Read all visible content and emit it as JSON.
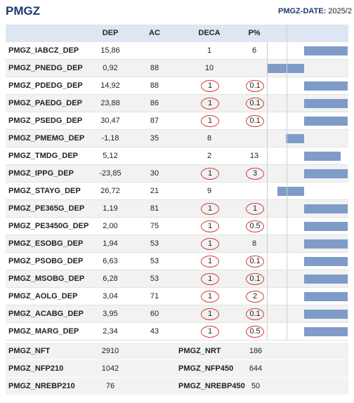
{
  "header": {
    "title": "PMGZ",
    "date_label": "PMGZ-DATE:",
    "date_value": "2025/2"
  },
  "table": {
    "columns": [
      "DEP",
      "AC",
      "DECA",
      "P%"
    ],
    "bar_lim": [
      -1,
      1
    ],
    "rows": [
      {
        "name": "PMGZ_IABCZ_DEP",
        "dep": "15,86",
        "ac": null,
        "deca": 1,
        "deca_flag": false,
        "p": 6,
        "p_flag": false,
        "bar": 1.2
      },
      {
        "name": "PMGZ_PNEDG_DEP",
        "dep": "0,92",
        "ac": 88,
        "deca": 10,
        "deca_flag": false,
        "p": null,
        "p_flag": false,
        "bar": -1
      },
      {
        "name": "PMGZ_PDEDG_DEP",
        "dep": "14,92",
        "ac": 88,
        "deca": 1,
        "deca_flag": true,
        "p": 0.1,
        "p_flag": true,
        "bar": 1.2
      },
      {
        "name": "PMGZ_PAEDG_DEP",
        "dep": "23,88",
        "ac": 86,
        "deca": 1,
        "deca_flag": true,
        "p": 0.1,
        "p_flag": true,
        "bar": 1.2
      },
      {
        "name": "PMGZ_PSEDG_DEP",
        "dep": "30,47",
        "ac": 87,
        "deca": 1,
        "deca_flag": true,
        "p": 0.1,
        "p_flag": true,
        "bar": 1.2
      },
      {
        "name": "PMGZ_PMEMG_DEP",
        "dep": "-1,18",
        "ac": 35,
        "deca": 8,
        "deca_flag": false,
        "p": null,
        "p_flag": false,
        "bar": -0.5
      },
      {
        "name": "PMGZ_TMDG_DEP",
        "dep": "5,12",
        "ac": null,
        "deca": 2,
        "deca_flag": false,
        "p": 13,
        "p_flag": false,
        "bar": 1.0
      },
      {
        "name": "PMGZ_IPPG_DEP",
        "dep": "-23,85",
        "ac": 30,
        "deca": 1,
        "deca_flag": true,
        "p": 3,
        "p_flag": true,
        "bar": 1.2
      },
      {
        "name": "PMGZ_STAYG_DEP",
        "dep": "26,72",
        "ac": 21,
        "deca": 9,
        "deca_flag": false,
        "p": null,
        "p_flag": false,
        "bar": -0.73
      },
      {
        "name": "PMGZ_PE365G_DEP",
        "dep": "1,19",
        "ac": 81,
        "deca": 1,
        "deca_flag": true,
        "p": 1,
        "p_flag": true,
        "bar": 1.2
      },
      {
        "name": "PMGZ_PE3450G_DEP",
        "dep": "2,00",
        "ac": 75,
        "deca": 1,
        "deca_flag": true,
        "p": 0.5,
        "p_flag": true,
        "bar": 1.2
      },
      {
        "name": "PMGZ_ESOBG_DEP",
        "dep": "1,94",
        "ac": 53,
        "deca": 1,
        "deca_flag": true,
        "p": 8,
        "p_flag": false,
        "bar": 1.2
      },
      {
        "name": "PMGZ_PSOBG_DEP",
        "dep": "6,63",
        "ac": 53,
        "deca": 1,
        "deca_flag": true,
        "p": 0.1,
        "p_flag": true,
        "bar": 1.2
      },
      {
        "name": "PMGZ_MSOBG_DEP",
        "dep": "6,28",
        "ac": 53,
        "deca": 1,
        "deca_flag": true,
        "p": 0.1,
        "p_flag": true,
        "bar": 1.2
      },
      {
        "name": "PMGZ_AOLG_DEP",
        "dep": "3,04",
        "ac": 71,
        "deca": 1,
        "deca_flag": true,
        "p": 2,
        "p_flag": true,
        "bar": 1.2
      },
      {
        "name": "PMGZ_ACABG_DEP",
        "dep": "3,95",
        "ac": 60,
        "deca": 1,
        "deca_flag": true,
        "p": 0.1,
        "p_flag": true,
        "bar": 1.2
      },
      {
        "name": "PMGZ_MARG_DEP",
        "dep": "2,34",
        "ac": 43,
        "deca": 1,
        "deca_flag": true,
        "p": 0.5,
        "p_flag": true,
        "bar": 1.2
      }
    ],
    "footer": [
      [
        {
          "name": "PMGZ_NFT",
          "value": 2910
        },
        {
          "name": "PMGZ_NRT",
          "value": 186
        }
      ],
      [
        {
          "name": "PMGZ_NFP210",
          "value": 1042
        },
        {
          "name": "PMGZ_NFP450",
          "value": 644
        }
      ],
      [
        {
          "name": "PMGZ_NREBP210",
          "value": 76
        },
        {
          "name": "PMGZ_NREBP450",
          "value": 50
        }
      ]
    ]
  }
}
